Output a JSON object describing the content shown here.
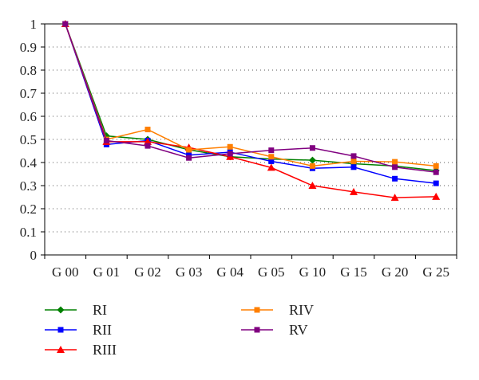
{
  "chart_data": {
    "type": "line",
    "categories": [
      "G 00",
      "G 01",
      "G 02",
      "G 03",
      "G 04",
      "G 05",
      "G 10",
      "G 15",
      "G 20",
      "G 25"
    ],
    "ylim": [
      0,
      1
    ],
    "yticks": [
      "0",
      "0.1",
      "0.2",
      "0.3",
      "0.4",
      "0.5",
      "0.6",
      "0.7",
      "0.8",
      "0.9",
      "1"
    ],
    "grid": "horizontal-dotted",
    "legend_position": "bottom",
    "series": [
      {
        "name": "RI",
        "color": "#008000",
        "marker": "diamond",
        "values": [
          1.0,
          0.515,
          0.5,
          0.455,
          0.425,
          0.415,
          0.41,
          0.395,
          0.385,
          0.365
        ]
      },
      {
        "name": "RII",
        "color": "#0000ff",
        "marker": "square",
        "values": [
          1.0,
          0.478,
          0.495,
          0.432,
          0.445,
          0.405,
          0.375,
          0.38,
          0.33,
          0.31
        ]
      },
      {
        "name": "RIII",
        "color": "#ff0000",
        "marker": "triangle",
        "values": [
          1.0,
          0.49,
          0.49,
          0.465,
          0.425,
          0.378,
          0.3,
          0.273,
          0.248,
          0.252
        ]
      },
      {
        "name": "RIV",
        "color": "#ff7f00",
        "marker": "square",
        "values": [
          1.0,
          0.5,
          0.543,
          0.455,
          0.468,
          0.425,
          0.385,
          0.405,
          0.403,
          0.385
        ]
      },
      {
        "name": "RV",
        "color": "#800080",
        "marker": "square",
        "values": [
          1.0,
          0.495,
          0.472,
          0.42,
          0.438,
          0.453,
          0.463,
          0.428,
          0.38,
          0.358
        ]
      }
    ]
  }
}
